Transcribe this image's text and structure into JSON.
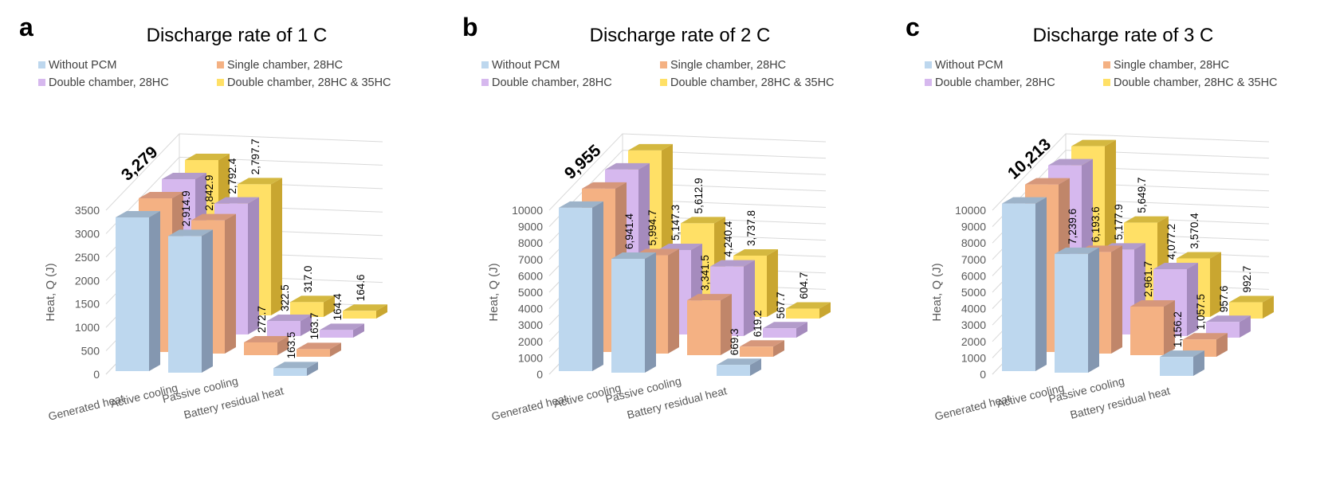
{
  "colors": {
    "without_pcm": {
      "front": "#bdd7ee",
      "side": "#8497b0",
      "top": "#9db3c9"
    },
    "single_chamber": {
      "front": "#f4b183",
      "side": "#c0866a",
      "top": "#d6977b"
    },
    "double_chamber": {
      "front": "#d6b8ee",
      "side": "#a58bbd",
      "top": "#b39ccb"
    },
    "double_chamber_35": {
      "front": "#ffe066",
      "side": "#c9a630",
      "top": "#d4b840"
    }
  },
  "chart_data": [
    {
      "type": "bar",
      "panel_label": "a",
      "title": "Discharge rate of 1 C",
      "ylabel": "Heat, Q (J)",
      "ylim": [
        0,
        3500
      ],
      "yticks": [
        "0",
        "500",
        "1000",
        "1500",
        "2000",
        "2500",
        "3000",
        "3500"
      ],
      "categories": [
        "Generated heat",
        "Active cooling",
        "Passive cooling",
        "Battery residual heat"
      ],
      "legend": [
        "Without PCM",
        "Single chamber, 28HC",
        "Double chamber, 28HC",
        "Double chamber, 28HC & 35HC"
      ],
      "generated_label": "3,279",
      "series": [
        {
          "name": "Without PCM",
          "values": [
            3279,
            2914.9,
            null,
            163.5
          ],
          "labels": [
            "",
            "2,914.9",
            "",
            "163.5"
          ]
        },
        {
          "name": "Single chamber, 28HC",
          "values": [
            3279,
            2842.9,
            272.7,
            163.7
          ],
          "labels": [
            "",
            "2,842.9",
            "272.7",
            "163.7"
          ]
        },
        {
          "name": "Double chamber, 28HC",
          "values": [
            3279,
            2792.4,
            322.5,
            164.4
          ],
          "labels": [
            "",
            "2,792.4",
            "322.5",
            "164.4"
          ]
        },
        {
          "name": "Double chamber, 28HC & 35HC",
          "values": [
            3279,
            2797.7,
            317.0,
            164.6
          ],
          "labels": [
            "",
            "2,797.7",
            "317.0",
            "164.6"
          ]
        }
      ]
    },
    {
      "type": "bar",
      "panel_label": "b",
      "title": "Discharge rate of 2 C",
      "ylabel": "Heat, Q (J)",
      "ylim": [
        0,
        10000
      ],
      "yticks": [
        "0",
        "1000",
        "2000",
        "3000",
        "4000",
        "5000",
        "6000",
        "7000",
        "8000",
        "9000",
        "10000"
      ],
      "categories": [
        "Generated heat",
        "Active cooling",
        "Passive cooling",
        "Battery residual heat"
      ],
      "legend": [
        "Without PCM",
        "Single chamber, 28HC",
        "Double chamber, 28HC",
        "Double chamber, 28HC & 35HC"
      ],
      "generated_label": "9,955",
      "series": [
        {
          "name": "Without PCM",
          "values": [
            9955,
            6941.4,
            null,
            669.3
          ],
          "labels": [
            "",
            "6,941.4",
            "",
            "669.3"
          ]
        },
        {
          "name": "Single chamber, 28HC",
          "values": [
            9955,
            5994.7,
            3341.5,
            619.2
          ],
          "labels": [
            "",
            "5,994.7",
            "3,341.5",
            "619.2"
          ]
        },
        {
          "name": "Double chamber, 28HC",
          "values": [
            9955,
            5147.3,
            4240.4,
            567.7
          ],
          "labels": [
            "",
            "5,147.3",
            "4,240.4",
            "567.7"
          ]
        },
        {
          "name": "Double chamber, 28HC & 35HC",
          "values": [
            9955,
            5612.9,
            3737.8,
            604.7
          ],
          "labels": [
            "",
            "5,612.9",
            "3,737.8",
            "604.7"
          ]
        }
      ]
    },
    {
      "type": "bar",
      "panel_label": "c",
      "title": "Discharge rate of 3 C",
      "ylabel": "Heat, Q (J)",
      "ylim": [
        0,
        10000
      ],
      "yticks": [
        "0",
        "1000",
        "2000",
        "3000",
        "4000",
        "5000",
        "6000",
        "7000",
        "8000",
        "9000",
        "10000"
      ],
      "categories": [
        "Generated heat",
        "Active cooling",
        "Passive cooling",
        "Battery residual heat"
      ],
      "legend": [
        "Without PCM",
        "Single chamber, 28HC",
        "Double chamber, 28HC",
        "Double chamber, 28HC & 35HC"
      ],
      "generated_label": "10,213",
      "series": [
        {
          "name": "Without PCM",
          "values": [
            10213,
            7239.6,
            null,
            1156.2
          ],
          "labels": [
            "",
            "7,239.6",
            "",
            "1,156.2"
          ]
        },
        {
          "name": "Single chamber, 28HC",
          "values": [
            10213,
            6193.6,
            2961.7,
            1057.5
          ],
          "labels": [
            "",
            "6,193.6",
            "2,961.7",
            "1,057.5"
          ]
        },
        {
          "name": "Double chamber, 28HC",
          "values": [
            10213,
            5177.9,
            4077.2,
            957.6
          ],
          "labels": [
            "",
            "5,177.9",
            "4,077.2",
            "957.6"
          ]
        },
        {
          "name": "Double chamber, 28HC & 35HC",
          "values": [
            10213,
            5649.7,
            3570.4,
            992.7
          ],
          "labels": [
            "",
            "5,649.7",
            "3,570.4",
            "992.7"
          ]
        }
      ]
    }
  ]
}
